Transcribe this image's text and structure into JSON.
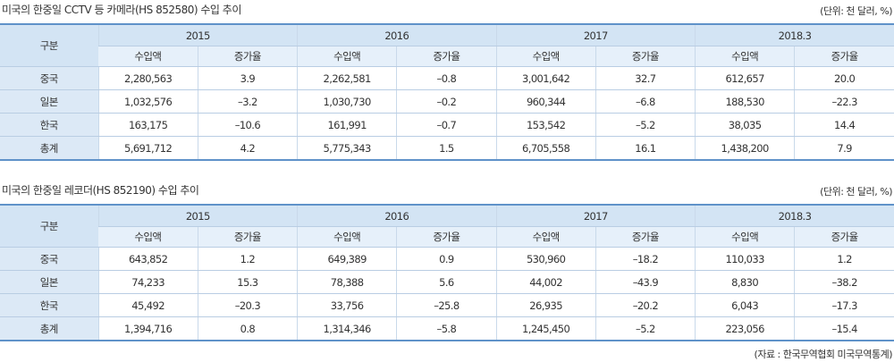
{
  "tables": [
    {
      "title": "미국의 한중일 CCTV 등 카메라(HS 852580) 수입 추이",
      "unit": "(단위: 천 달러, %)",
      "corner": "구분",
      "years": [
        "2015",
        "2016",
        "2017",
        "2018.3"
      ],
      "sub_headers": [
        "수입액",
        "증가율",
        "수입액",
        "증가율",
        "수입액",
        "증가율",
        "수입액",
        "증가율"
      ],
      "rows": [
        {
          "label": "중국",
          "cells": [
            "2,280,563",
            "3.9",
            "2,262,581",
            "–0.8",
            "3,001,642",
            "32.7",
            "612,657",
            "20.0"
          ]
        },
        {
          "label": "일본",
          "cells": [
            "1,032,576",
            "–3.2",
            "1,030,730",
            "–0.2",
            "960,344",
            "–6.8",
            "188,530",
            "–22.3"
          ]
        },
        {
          "label": "한국",
          "cells": [
            "163,175",
            "–10.6",
            "161,991",
            "–0.7",
            "153,542",
            "–5.2",
            "38,035",
            "14.4"
          ]
        },
        {
          "label": "총계",
          "cells": [
            "5,691,712",
            "4.2",
            "5,775,343",
            "1.5",
            "6,705,558",
            "16.1",
            "1,438,200",
            "7.9"
          ]
        }
      ]
    },
    {
      "title": "미국의 한중일 레코더(HS 852190) 수입 추이",
      "unit": "(단위: 천 달러, %)",
      "corner": "구분",
      "years": [
        "2015",
        "2016",
        "2017",
        "2018.3"
      ],
      "sub_headers": [
        "수입액",
        "증가율",
        "수입액",
        "증가율",
        "수입액",
        "증가율",
        "수입액",
        "증가율"
      ],
      "rows": [
        {
          "label": "중국",
          "cells": [
            "643,852",
            "1.2",
            "649,389",
            "0.9",
            "530,960",
            "–18.2",
            "110,033",
            "1.2"
          ]
        },
        {
          "label": "일본",
          "cells": [
            "74,233",
            "15.3",
            "78,388",
            "5.6",
            "44,002",
            "–43.9",
            "8,830",
            "–38.2"
          ]
        },
        {
          "label": "한국",
          "cells": [
            "45,492",
            "–20.3",
            "33,756",
            "–25.8",
            "26,935",
            "–20.2",
            "6,043",
            "–17.3"
          ]
        },
        {
          "label": "총계",
          "cells": [
            "1,394,716",
            "0.8",
            "1,314,346",
            "–5.8",
            "1,245,450",
            "–5.2",
            "223,056",
            "–15.4"
          ]
        }
      ]
    }
  ],
  "source": "(자료 : 한국무역협회 미국무역통계)"
}
